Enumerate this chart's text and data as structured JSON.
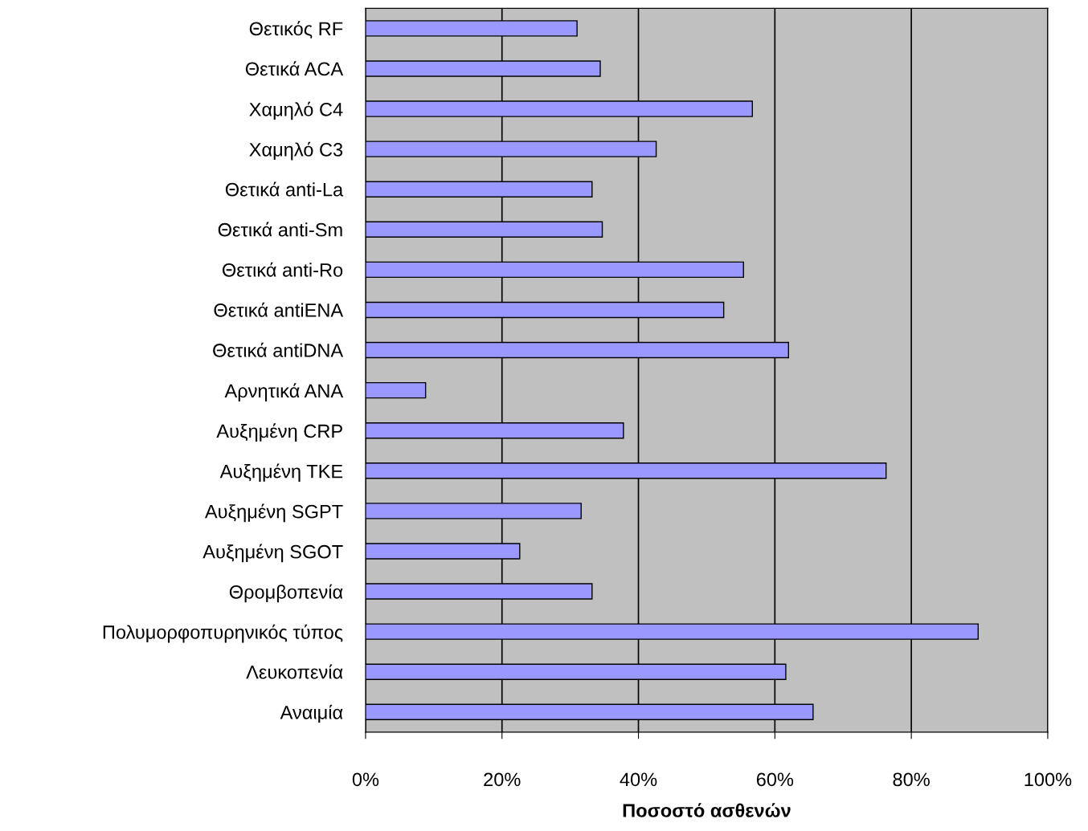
{
  "chart_data": {
    "type": "bar",
    "orientation": "horizontal",
    "xlabel": "Ποσοστό ασθενών",
    "categories": [
      "Θετικός RF",
      "Θετικά ACA",
      "Χαμηλό C4",
      "Χαμηλό C3",
      "Θετικά anti-La",
      "Θετικά anti-Sm",
      "Θετικά anti-Ro",
      "Θετικά antiENA",
      "Θετικά antiDNA",
      "Αρνητικά ANA",
      "Αυξημένη CRP",
      "Αυξημένη TKE",
      "Αυξημένη SGPT",
      "Αυξημένη SGOT",
      "Θρομβοπενία",
      "Πολυμορφοπυρηνικός τύπος",
      "Λευκοπενία",
      "Αναιμία"
    ],
    "values": [
      31.0,
      34.4,
      56.7,
      42.6,
      33.2,
      34.7,
      55.4,
      52.5,
      62.0,
      8.8,
      37.8,
      76.3,
      31.6,
      22.6,
      33.2,
      89.8,
      61.6,
      65.6
    ],
    "color": "#9999ff",
    "xlim": [
      0,
      100
    ],
    "xticks": [
      {
        "value": 0,
        "label": "0%"
      },
      {
        "value": 20,
        "label": "20%"
      },
      {
        "value": 40,
        "label": "40%"
      },
      {
        "value": 60,
        "label": "60%"
      },
      {
        "value": 80,
        "label": "80%"
      },
      {
        "value": 100,
        "label": "100%"
      }
    ],
    "grid": "x",
    "legend": false
  }
}
